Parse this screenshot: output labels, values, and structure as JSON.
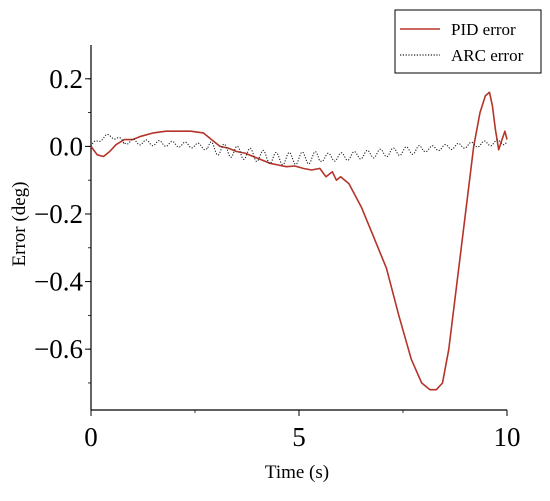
{
  "chart_data": {
    "type": "line",
    "xlabel": "Time (s)",
    "ylabel": "Error (deg)",
    "xlim": [
      0,
      10
    ],
    "ylim": [
      -0.78,
      0.3
    ],
    "x_ticks": [
      0,
      5,
      10
    ],
    "x_tick_labels": [
      "0",
      "5",
      "10"
    ],
    "y_ticks": [
      0.2,
      0.0,
      -0.2,
      -0.4,
      -0.6
    ],
    "y_tick_labels": [
      "0.2",
      "0.0",
      "−0.2",
      "−0.4",
      "−0.6"
    ],
    "grid": false,
    "legend_position": "top-right",
    "series": [
      {
        "name": "PID error",
        "style": "solid",
        "color": "#b5342a",
        "x": [
          0,
          0.15,
          0.3,
          0.45,
          0.6,
          0.8,
          1.0,
          1.2,
          1.5,
          1.8,
          2.1,
          2.4,
          2.7,
          2.9,
          3.1,
          3.3,
          3.5,
          3.7,
          3.9,
          4.1,
          4.3,
          4.5,
          4.7,
          4.9,
          5.1,
          5.3,
          5.5,
          5.65,
          5.8,
          5.9,
          6.0,
          6.2,
          6.5,
          6.8,
          7.1,
          7.4,
          7.7,
          7.95,
          8.15,
          8.3,
          8.45,
          8.6,
          8.8,
          9.0,
          9.2,
          9.35,
          9.48,
          9.58,
          9.65,
          9.72,
          9.8,
          9.88,
          9.95,
          10.0
        ],
        "y": [
          0.0,
          -0.025,
          -0.03,
          -0.015,
          0.005,
          0.02,
          0.02,
          0.03,
          0.04,
          0.045,
          0.045,
          0.045,
          0.04,
          0.02,
          0.0,
          -0.005,
          -0.015,
          -0.02,
          -0.03,
          -0.04,
          -0.05,
          -0.055,
          -0.06,
          -0.058,
          -0.065,
          -0.07,
          -0.065,
          -0.09,
          -0.075,
          -0.1,
          -0.09,
          -0.11,
          -0.18,
          -0.27,
          -0.36,
          -0.5,
          -0.63,
          -0.7,
          -0.72,
          -0.72,
          -0.7,
          -0.6,
          -0.4,
          -0.2,
          0.0,
          0.1,
          0.15,
          0.16,
          0.12,
          0.05,
          -0.01,
          0.02,
          0.045,
          0.02
        ]
      },
      {
        "name": "ARC error",
        "style": "dotted",
        "color": "#222222",
        "function": "oscillating"
      }
    ]
  }
}
